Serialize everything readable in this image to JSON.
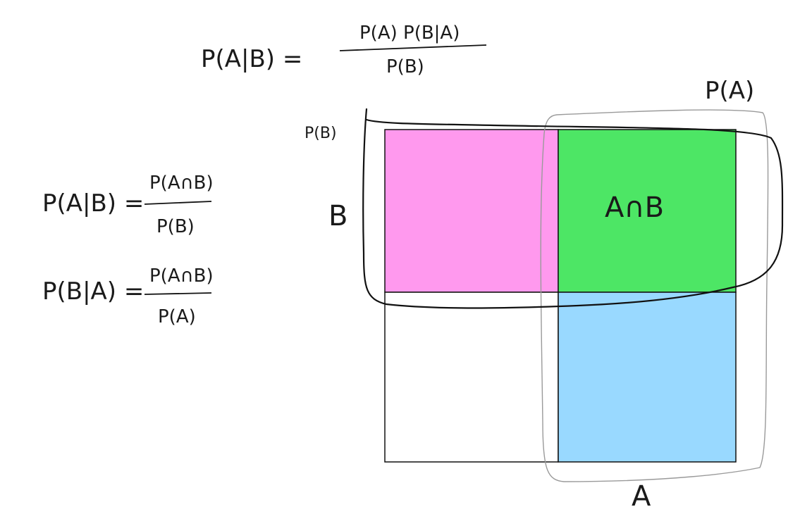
{
  "colors": {
    "region_a_not_b": "#ff99ee",
    "region_a_and_b": "#4de665",
    "region_a_only": "#99d9ff",
    "region_neither": "#ffffff",
    "ink": "#1a1a1a",
    "outline_a": "#9a9a9a"
  },
  "equation_top": {
    "lhs": "P(A|B) =",
    "numerator": "P(A) P(B|A)",
    "denominator": "P(B)"
  },
  "equation_left_1": {
    "lhs": "P(A|B) =",
    "numerator": "P(A∩B)",
    "denominator": "P(B)"
  },
  "equation_left_2": {
    "lhs": "P(B|A) =",
    "numerator": "P(A∩B)",
    "denominator": "P(A)"
  },
  "labels": {
    "p_b": "P(B)",
    "p_a": "P(A)",
    "b": "B",
    "a": "A",
    "intersection": "A∩B"
  }
}
